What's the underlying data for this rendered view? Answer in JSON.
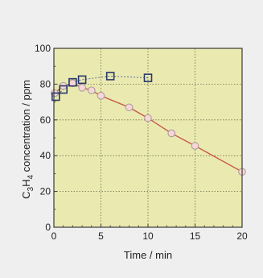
{
  "chart_data": {
    "type": "line",
    "title": "",
    "xlabel": "Time / min",
    "ylabel": {
      "prefix": "C",
      "sub1": "3",
      "mid": "H",
      "sub2": "4",
      "suffix": "  concentration / ppm"
    },
    "xlim": [
      0,
      20
    ],
    "ylim": [
      0,
      100
    ],
    "xticks": [
      "0",
      "5",
      "10",
      "15",
      "20"
    ],
    "yticks": [
      "0",
      "20",
      "40",
      "60",
      "80",
      "100"
    ],
    "grid": true,
    "colors": {
      "plot_background": "#eaeab0",
      "page_background": "#efefef",
      "grid": "#6a6a4a",
      "series_upper": "#2a3a6a",
      "series_lower_line": "#c8564e",
      "series_lower_marker": "#f6d6d6",
      "series_lower_marker_edge": "#a89898"
    },
    "series": [
      {
        "marker": "open-square",
        "line": "dashed",
        "x": [
          0.2,
          1,
          2,
          3,
          6,
          10
        ],
        "y": [
          73,
          77,
          81,
          82.5,
          84.5,
          83.5
        ]
      },
      {
        "marker": "open-circle",
        "line": "solid",
        "x": [
          0,
          1,
          2,
          3,
          4,
          5,
          8,
          10,
          12.5,
          15,
          20
        ],
        "y": [
          75,
          79,
          80.5,
          78,
          76.5,
          73.5,
          67,
          61,
          52.5,
          45.5,
          31
        ]
      }
    ]
  }
}
